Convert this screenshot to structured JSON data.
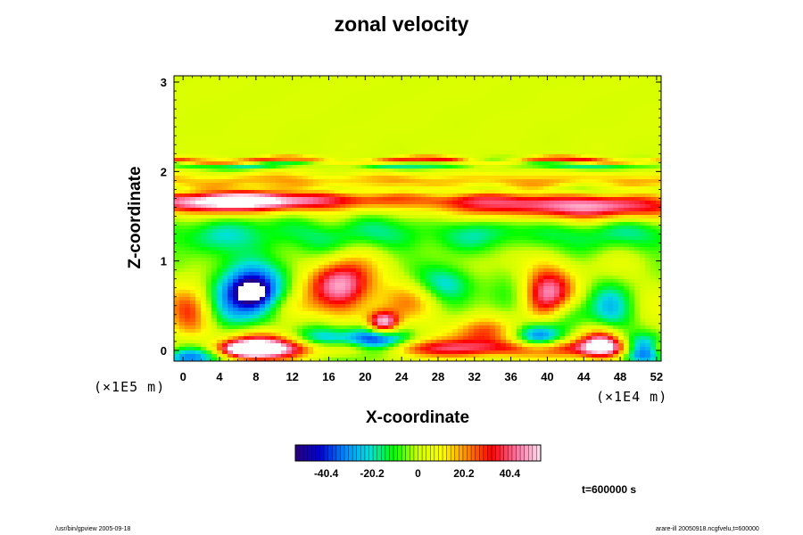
{
  "chart_data": {
    "type": "heatmap",
    "title": "zonal velocity",
    "xlabel": "X-coordinate",
    "ylabel": "Z-coordinate",
    "x_unit": "(×1E4 m)",
    "y_unit": "(×1E5 m)",
    "x_ticks": [
      0,
      4,
      8,
      12,
      16,
      20,
      24,
      28,
      32,
      36,
      40,
      44,
      48,
      52
    ],
    "y_ticks": [
      0,
      1,
      2,
      3
    ],
    "xlim": [
      -1,
      52.5
    ],
    "ylim": [
      -0.12,
      3.07
    ],
    "colorbar": {
      "ticks": [
        "-40.4",
        "-20.2",
        "0",
        "20.2",
        "40.4"
      ],
      "range": [
        -54,
        54
      ],
      "colors": [
        "#2a0080",
        "#0000d8",
        "#0088ff",
        "#00e0e0",
        "#00ff00",
        "#d0ff00",
        "#ffff00",
        "#ff8800",
        "#ff0000",
        "#ff70a0",
        "#ffe0ee"
      ]
    },
    "background_value": 2,
    "features": [
      {
        "x": 4,
        "z": 0.02,
        "sx": 2.6,
        "sz": 0.07,
        "v": 30,
        "band": true,
        "zw": 0.05,
        "amp": 1,
        "wave": 0
      },
      {
        "x": 20,
        "z": 2.08,
        "sx": 60,
        "sz": 0.03,
        "v": -20,
        "band": true,
        "amp": 1,
        "wave": 0.9
      },
      {
        "x": 20,
        "z": 2.12,
        "sx": 60,
        "sz": 0.025,
        "v": 30,
        "band": true,
        "amp": 1,
        "wave": 1.2
      },
      {
        "x": 20,
        "z": 1.9,
        "sx": 60,
        "sz": 0.06,
        "v": 14,
        "band": true,
        "amp": 1,
        "wave": 1.5
      },
      {
        "x": 20,
        "z": 1.78,
        "sx": 60,
        "sz": 0.04,
        "v": -10,
        "band": true,
        "amp": 1,
        "wave": 2.0
      },
      {
        "x": 3,
        "z": 1.66,
        "sx": 7,
        "sz": 0.09,
        "v": 46,
        "band": false
      },
      {
        "x": 10,
        "z": 1.68,
        "sx": 6,
        "sz": 0.08,
        "v": 28,
        "band": false
      },
      {
        "x": 44,
        "z": 1.6,
        "sx": 10,
        "sz": 0.1,
        "v": 44,
        "band": false
      },
      {
        "x": 27,
        "z": 1.7,
        "sx": 10,
        "sz": 0.08,
        "v": 20,
        "band": false
      },
      {
        "x": 20,
        "z": 1.3,
        "sx": 60,
        "sz": 0.15,
        "v": -16,
        "band": true,
        "amp": 1,
        "wave": 2.5
      },
      {
        "x": 7,
        "z": 0.62,
        "sx": 3.2,
        "sz": 0.28,
        "v": -46,
        "band": false
      },
      {
        "x": 7.5,
        "z": 0.65,
        "sx": 1.2,
        "sz": 0.1,
        "v": -30,
        "band": false
      },
      {
        "x": 17.5,
        "z": 0.72,
        "sx": 2.4,
        "sz": 0.2,
        "v": 48,
        "band": false
      },
      {
        "x": 29,
        "z": 0.75,
        "sx": 2.4,
        "sz": 0.15,
        "v": -26,
        "band": false
      },
      {
        "x": 40,
        "z": 0.6,
        "sx": 2.0,
        "sz": 0.24,
        "v": 44,
        "band": false
      },
      {
        "x": 47,
        "z": 0.45,
        "sx": 1.8,
        "sz": 0.22,
        "v": -24,
        "band": false
      },
      {
        "x": 1,
        "z": 0.45,
        "sx": 1.8,
        "sz": 0.2,
        "v": 34,
        "band": false
      },
      {
        "x": 22,
        "z": 0.3,
        "sx": 1.2,
        "sz": 0.09,
        "v": 58,
        "band": false
      },
      {
        "x": 21,
        "z": 0.1,
        "sx": 2.3,
        "sz": 0.12,
        "v": -54,
        "band": false
      },
      {
        "x": 15.5,
        "z": 0.1,
        "sx": 2.2,
        "sz": 0.12,
        "v": -30,
        "band": false
      },
      {
        "x": 1,
        "z": -0.02,
        "sx": 2.4,
        "sz": 0.1,
        "v": -58,
        "band": false
      },
      {
        "x": 50.5,
        "z": 0.0,
        "sx": 1.7,
        "sz": 0.1,
        "v": -58,
        "band": false
      },
      {
        "x": 8,
        "z": 0.05,
        "sx": 2.5,
        "sz": 0.12,
        "v": 50,
        "band": false
      },
      {
        "x": 7,
        "z": 0.01,
        "sx": 1.6,
        "sz": 0.05,
        "v": 30,
        "band": false
      },
      {
        "x": 39,
        "z": 0.15,
        "sx": 1.8,
        "sz": 0.11,
        "v": -40,
        "band": false
      },
      {
        "x": 46,
        "z": 0.08,
        "sx": 1.6,
        "sz": 0.11,
        "v": 44,
        "band": false
      },
      {
        "x": 33,
        "z": 0.2,
        "sx": 2.4,
        "sz": 0.12,
        "v": 26,
        "band": false
      },
      {
        "x": 12,
        "z": 0.45,
        "sx": 2.0,
        "sz": 0.14,
        "v": 18,
        "band": false
      },
      {
        "x": 25,
        "z": 0.55,
        "sx": 2.2,
        "sz": 0.16,
        "v": 16,
        "band": false
      },
      {
        "x": 36,
        "z": 0.5,
        "sx": 2.0,
        "sz": 0.18,
        "v": -14,
        "band": false
      },
      {
        "x": 42,
        "z": 0.4,
        "sx": 1.8,
        "sz": 0.14,
        "v": -20,
        "band": false
      }
    ],
    "grid": false,
    "time_label": "t=600000 s"
  },
  "footer": {
    "left": "/usr/bin/gpview 2005-09-18",
    "right": "arare-ill 20050918.ncgfvelu,t=600000"
  }
}
